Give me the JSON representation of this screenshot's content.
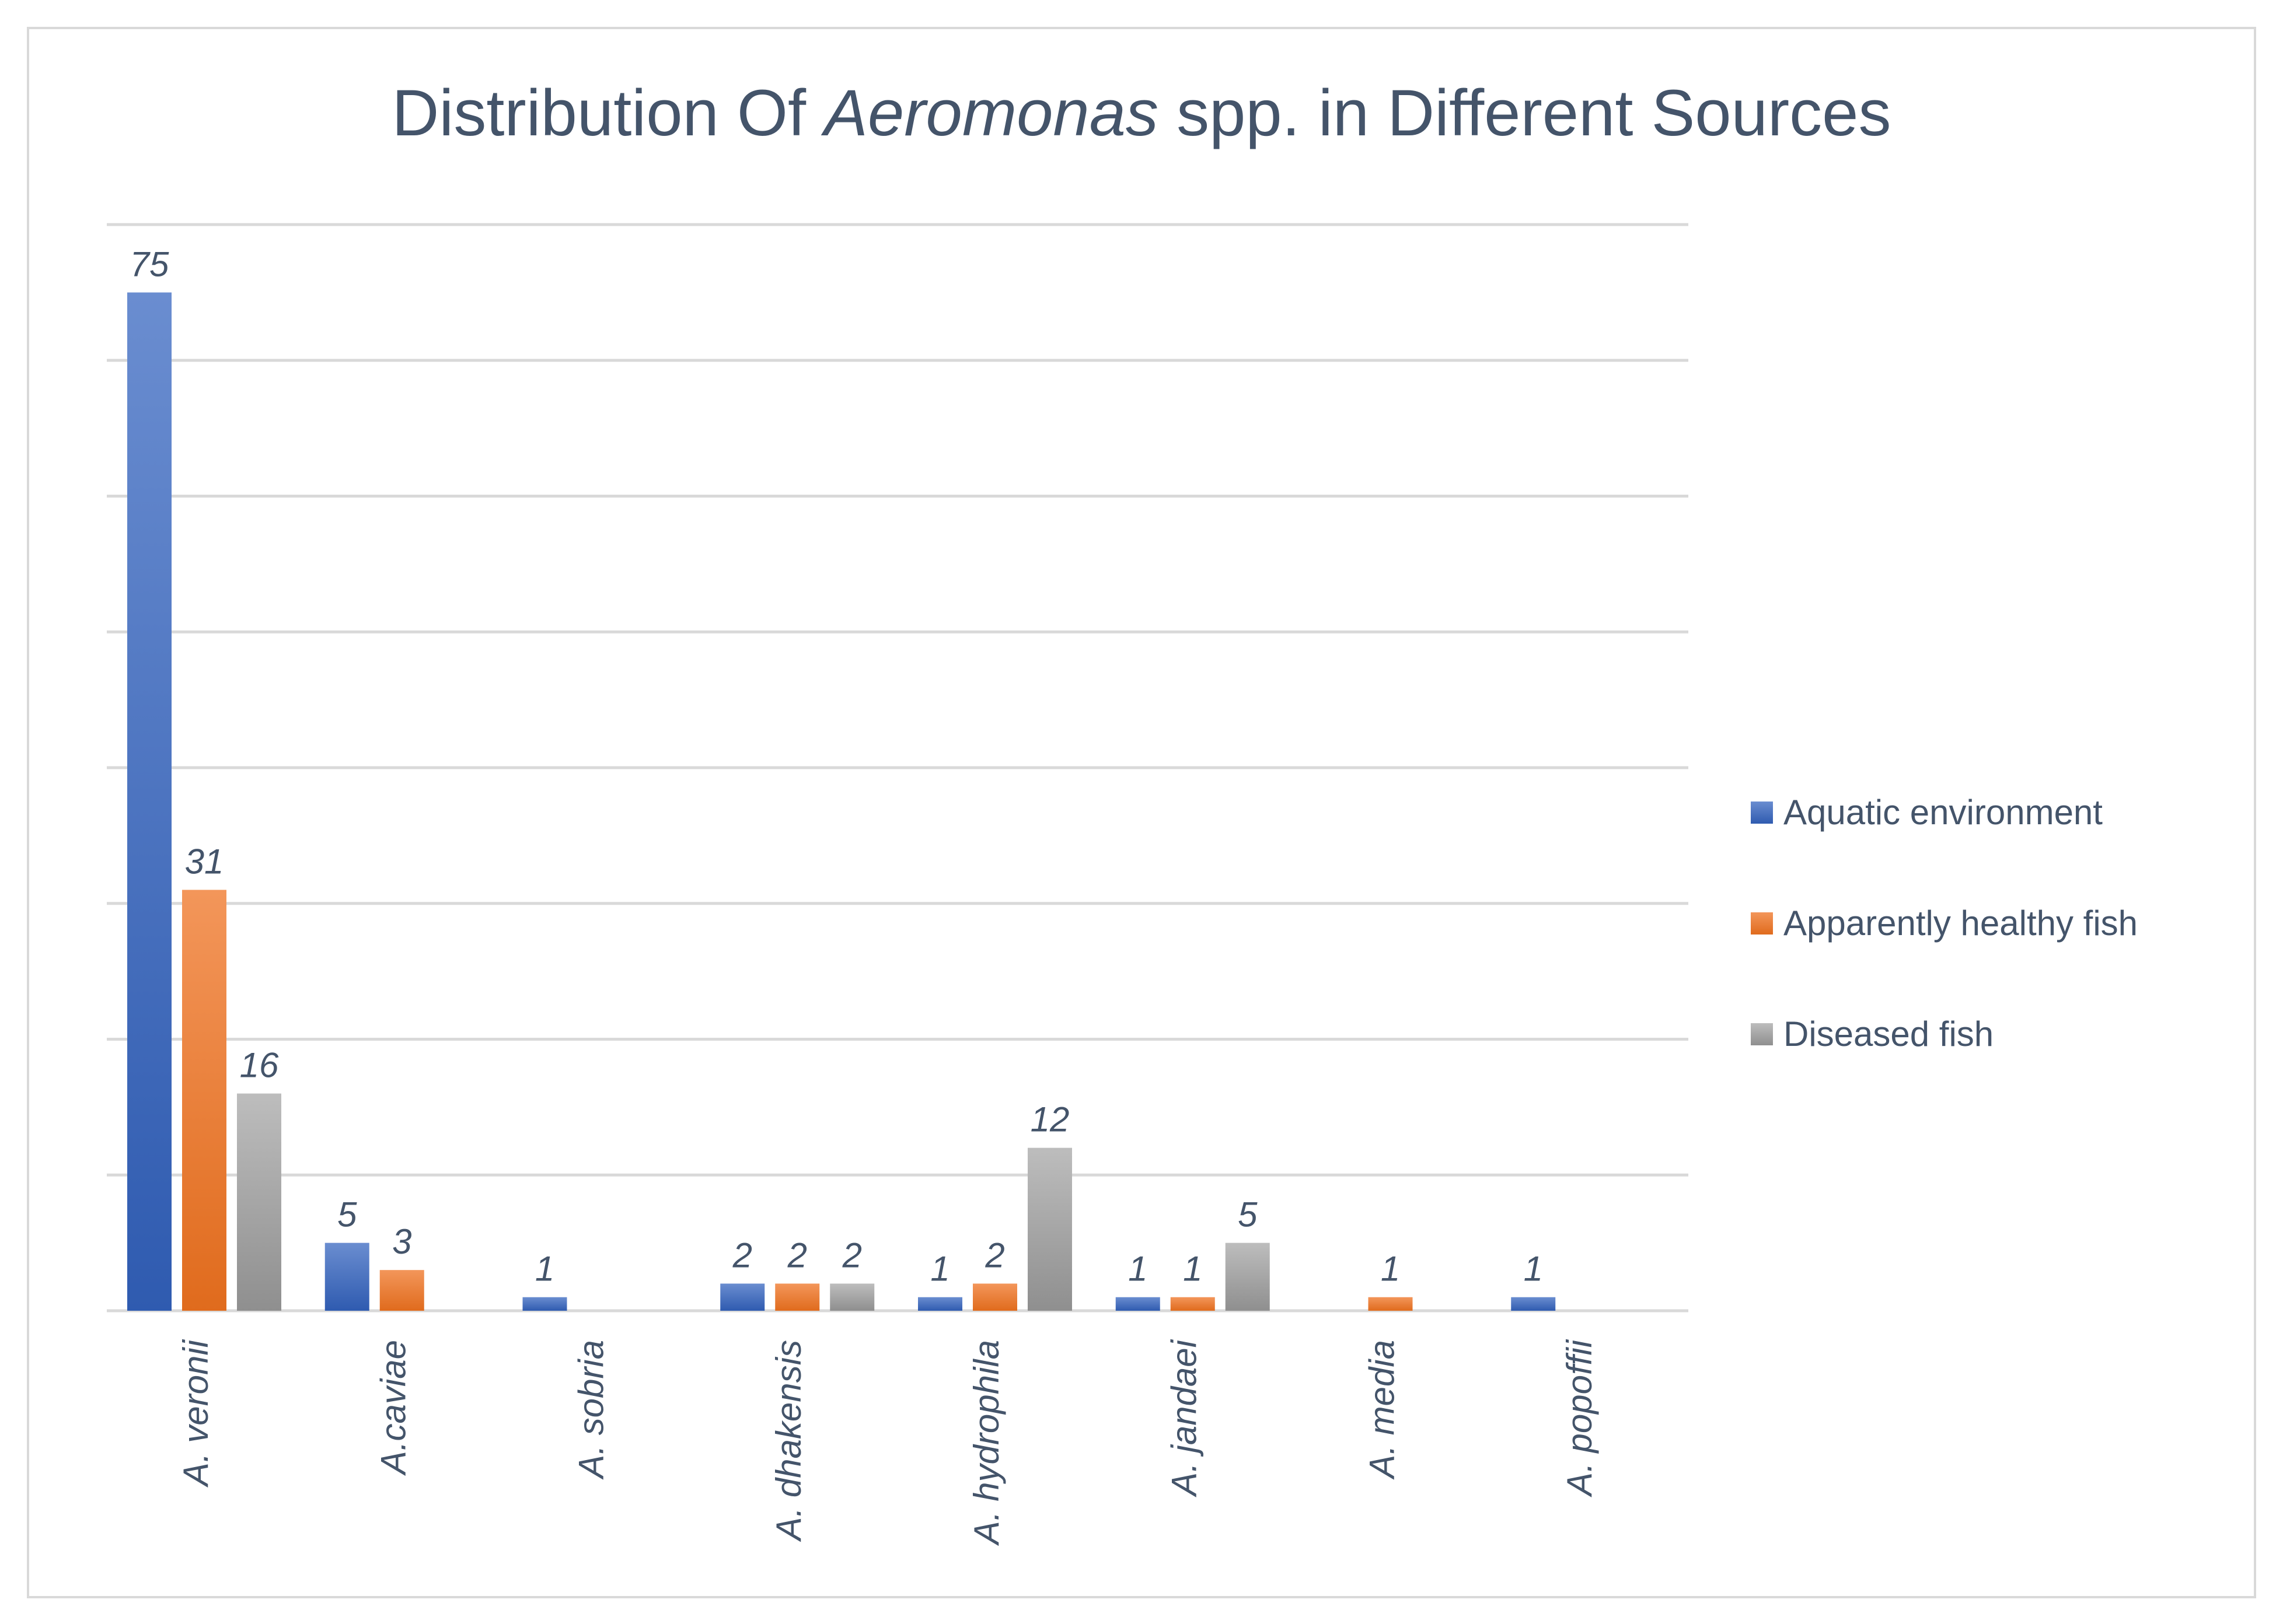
{
  "chart_data": {
    "type": "bar",
    "title": {
      "before": "Distribution Of ",
      "italic": "Aeromonas",
      "after": " spp. in Different Sources"
    },
    "categories": [
      "A. veronii",
      "A.caviae",
      "A. sobria",
      "A. dhakensis",
      "A. hydrophila",
      "A. jandaei",
      "A. media",
      "A. popoffii"
    ],
    "series": [
      {
        "name": "Aquatic environment",
        "color": "#4472c4",
        "values": [
          75,
          5,
          1,
          2,
          1,
          1,
          null,
          1
        ]
      },
      {
        "name": "Apparently healthy fish",
        "color": "#ed7d31",
        "values": [
          31,
          3,
          null,
          2,
          2,
          1,
          1,
          null
        ]
      },
      {
        "name": "Diseased fish",
        "color": "#a5a5a5",
        "values": [
          16,
          null,
          null,
          2,
          12,
          5,
          null,
          null
        ]
      }
    ],
    "ylim": [
      0,
      80
    ],
    "ytick_step": 10,
    "grid": true,
    "show_y_tick_labels": false,
    "legend": "right",
    "xlabel": "",
    "ylabel": ""
  }
}
